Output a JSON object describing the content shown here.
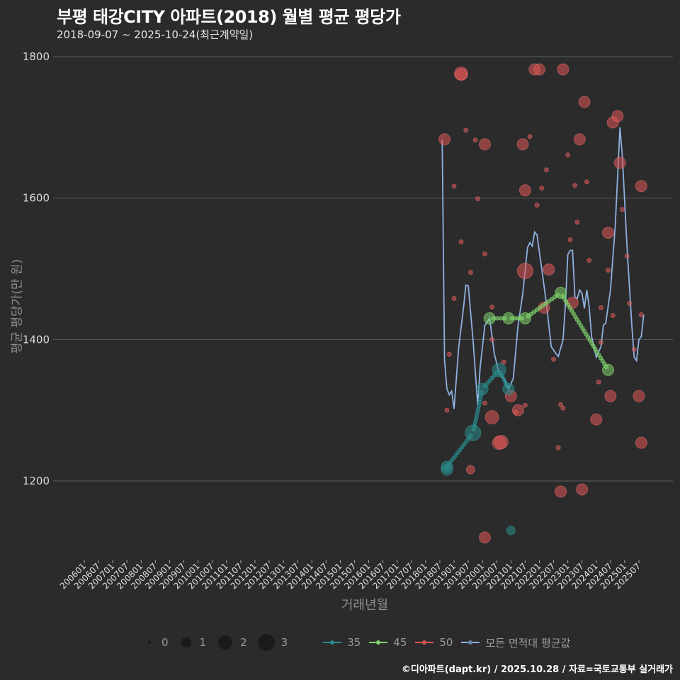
{
  "title": "부평 태강CITY 아파트(2018) 월별 평균 평당가",
  "subtitle": "2018-09-07 ~ 2025-10-24(최근계약일)",
  "credit": "©디아파트(dapt.kr) / 2025.10.28 / 자료=국토교통부 실거래가",
  "legend": {
    "size_labels": [
      "0",
      "1",
      "2",
      "3"
    ],
    "series_labels": [
      "35",
      "45",
      "50",
      "모든 면적대 평균값"
    ]
  },
  "colors": {
    "s35": "#2a8c8c",
    "s45": "#7fd36b",
    "s50": "#e05555",
    "avg": "#8fb0e0",
    "bg": "#2b2b2c",
    "grid": "#5d5d5d"
  },
  "chart_data": {
    "type": "scatter",
    "title": "부평 태강CITY 아파트(2018) 월별 평균 평당가",
    "subtitle": "2018-09-07 ~ 2025-10-24(최근계약일)",
    "xlabel": "거래년월",
    "ylabel": "평균 평당가(만 원)",
    "ylim": [
      1090,
      1810
    ],
    "yticks": [
      1200,
      1400,
      1600,
      1800
    ],
    "xticks": [
      "200601",
      "200607",
      "200701",
      "200707",
      "200801",
      "200807",
      "200901",
      "200907",
      "201001",
      "201007",
      "201101",
      "201107",
      "201201",
      "201207",
      "201301",
      "201307",
      "201401",
      "201407",
      "201501",
      "201507",
      "201601",
      "201607",
      "201701",
      "201707",
      "201801",
      "201807",
      "201901",
      "201907",
      "202001",
      "202007",
      "202101",
      "202107",
      "202201",
      "202207",
      "202301",
      "202307",
      "202401",
      "202407",
      "202501",
      "202507"
    ],
    "grid": true,
    "legend_position": "bottom",
    "series": [
      {
        "name": "35",
        "points": [
          [
            "2018-10",
            1216,
            2
          ],
          [
            "2018-10",
            1220,
            2
          ],
          [
            "2019-09",
            1268,
            3
          ],
          [
            "2020-01",
            1330,
            2
          ],
          [
            "2020-08",
            1357,
            2.5
          ],
          [
            "2020-12",
            1330,
            2
          ],
          [
            "2021-01",
            1130,
            1.5
          ]
        ]
      },
      {
        "name": "45",
        "points": [
          [
            "2020-04",
            1430,
            2
          ],
          [
            "2020-12",
            1430,
            2
          ],
          [
            "2021-07",
            1430,
            2
          ],
          [
            "2022-10",
            1466,
            2
          ],
          [
            "2024-06",
            1357,
            2
          ]
        ]
      },
      {
        "name": "50",
        "points": [
          [
            "2018-09",
            1683,
            2
          ],
          [
            "2019-04",
            1776,
            2.5
          ],
          [
            "2019-04",
            1775,
            2
          ],
          [
            "2020-02",
            1676,
            2
          ],
          [
            "2021-06",
            1676,
            2
          ],
          [
            "2021-11",
            1782,
            2
          ],
          [
            "2022-01",
            1782,
            2
          ],
          [
            "2022-11",
            1782,
            2
          ],
          [
            "2023-06",
            1683,
            2
          ],
          [
            "2023-08",
            1736,
            2
          ],
          [
            "2024-08",
            1707,
            2
          ],
          [
            "2024-10",
            1716,
            2
          ],
          [
            "2024-11",
            1650,
            2
          ],
          [
            "2025-08",
            1617,
            2
          ],
          [
            "2021-07",
            1611,
            2
          ],
          [
            "2024-06",
            1551,
            2
          ],
          [
            "2021-07",
            1497,
            3
          ],
          [
            "2022-05",
            1499,
            2
          ],
          [
            "2022-03",
            1445,
            2
          ],
          [
            "2023-03",
            1452,
            2
          ],
          [
            "2019-08",
            1216,
            1.5
          ],
          [
            "2020-02",
            1120,
            2
          ],
          [
            "2020-05",
            1290,
            2.5
          ],
          [
            "2020-08",
            1254,
            2.5
          ],
          [
            "2020-09",
            1255,
            2.5
          ],
          [
            "2021-01",
            1320,
            2
          ],
          [
            "2021-04",
            1300,
            2
          ],
          [
            "2022-10",
            1185,
            2
          ],
          [
            "2023-07",
            1188,
            2
          ],
          [
            "2024-01",
            1287,
            2
          ],
          [
            "2024-07",
            1320,
            2
          ],
          [
            "2025-07",
            1320,
            2
          ],
          [
            "2025-08",
            1254,
            2
          ],
          [
            "2019-06",
            1696,
            0.5
          ],
          [
            "2019-10",
            1682,
            0.5
          ],
          [
            "2019-01",
            1617,
            0.5
          ],
          [
            "2019-11",
            1599,
            0.5
          ],
          [
            "2020-05",
            1446,
            0.5
          ],
          [
            "2021-09",
            1687,
            0.5
          ],
          [
            "2022-04",
            1640,
            0.5
          ],
          [
            "2022-02",
            1614,
            0.5
          ],
          [
            "2021-12",
            1590,
            0.5
          ],
          [
            "2019-04",
            1538,
            0.5
          ],
          [
            "2020-02",
            1521,
            0.5
          ],
          [
            "2019-08",
            1495,
            0.5
          ],
          [
            "2019-01",
            1458,
            0.5
          ],
          [
            "2020-05",
            1400,
            0.5
          ],
          [
            "2018-11",
            1379,
            0.5
          ],
          [
            "2018-10",
            1300,
            0.5
          ],
          [
            "2020-02",
            1310,
            0.5
          ],
          [
            "2020-10",
            1368,
            0.5
          ],
          [
            "2021-03",
            1297,
            0.5
          ],
          [
            "2021-07",
            1307,
            0.5
          ],
          [
            "2023-01",
            1661,
            0.5
          ],
          [
            "2023-05",
            1566,
            0.5
          ],
          [
            "2023-04",
            1618,
            0.5
          ],
          [
            "2023-09",
            1623,
            0.5
          ],
          [
            "2023-02",
            1541,
            0.5
          ],
          [
            "2022-10",
            1308,
            0.5
          ],
          [
            "2022-11",
            1303,
            0.5
          ],
          [
            "2022-09",
            1247,
            0.5
          ],
          [
            "2022-07",
            1372,
            0.5
          ],
          [
            "2023-10",
            1512,
            0.5
          ],
          [
            "2024-03",
            1445,
            0.5
          ],
          [
            "2024-02",
            1340,
            0.5
          ],
          [
            "2024-03",
            1396,
            0.5
          ],
          [
            "2024-06",
            1498,
            0.5
          ],
          [
            "2024-08",
            1434,
            0.5
          ],
          [
            "2024-12",
            1584,
            0.5
          ],
          [
            "2025-02",
            1518,
            0.5
          ],
          [
            "2025-03",
            1451,
            0.5
          ],
          [
            "2025-05",
            1386,
            0.5
          ],
          [
            "2025-08",
            1435,
            0.5
          ]
        ]
      },
      {
        "name": "모든 면적대 평균값",
        "line": [
          [
            "2018-08",
            1683
          ],
          [
            "2018-09",
            1370
          ],
          [
            "2018-10",
            1330
          ],
          [
            "2018-11",
            1322
          ],
          [
            "2018-12",
            1327
          ],
          [
            "2019-01",
            1302
          ],
          [
            "2019-03",
            1390
          ],
          [
            "2019-05",
            1445
          ],
          [
            "2019-06",
            1477
          ],
          [
            "2019-07",
            1476
          ],
          [
            "2019-09",
            1400
          ],
          [
            "2019-11",
            1307
          ],
          [
            "2019-12",
            1360
          ],
          [
            "2020-02",
            1420
          ],
          [
            "2020-04",
            1430
          ],
          [
            "2020-06",
            1380
          ],
          [
            "2020-08",
            1352
          ],
          [
            "2020-10",
            1345
          ],
          [
            "2020-11",
            1337
          ],
          [
            "2020-12",
            1330
          ],
          [
            "2021-02",
            1345
          ],
          [
            "2021-04",
            1420
          ],
          [
            "2021-06",
            1465
          ],
          [
            "2021-08",
            1530
          ],
          [
            "2021-09",
            1537
          ],
          [
            "2021-10",
            1532
          ],
          [
            "2021-11",
            1552
          ],
          [
            "2021-12",
            1548
          ],
          [
            "2022-02",
            1500
          ],
          [
            "2022-04",
            1450
          ],
          [
            "2022-06",
            1390
          ],
          [
            "2022-08",
            1380
          ],
          [
            "2022-09",
            1376
          ],
          [
            "2022-11",
            1400
          ],
          [
            "2022-12",
            1450
          ],
          [
            "2023-01",
            1520
          ],
          [
            "2023-02",
            1526
          ],
          [
            "2023-03",
            1526
          ],
          [
            "2023-04",
            1460
          ],
          [
            "2023-05",
            1458
          ],
          [
            "2023-06",
            1470
          ],
          [
            "2023-07",
            1465
          ],
          [
            "2023-08",
            1444
          ],
          [
            "2023-09",
            1470
          ],
          [
            "2023-10",
            1447
          ],
          [
            "2023-11",
            1405
          ],
          [
            "2024-01",
            1375
          ],
          [
            "2024-03",
            1390
          ],
          [
            "2024-04",
            1420
          ],
          [
            "2024-05",
            1423
          ],
          [
            "2024-07",
            1470
          ],
          [
            "2024-09",
            1560
          ],
          [
            "2024-11",
            1700
          ],
          [
            "2024-12",
            1660
          ],
          [
            "2025-02",
            1530
          ],
          [
            "2025-04",
            1420
          ],
          [
            "2025-05",
            1375
          ],
          [
            "2025-06",
            1370
          ],
          [
            "2025-07",
            1400
          ],
          [
            "2025-08",
            1404
          ],
          [
            "2025-09",
            1435
          ]
        ]
      }
    ]
  }
}
